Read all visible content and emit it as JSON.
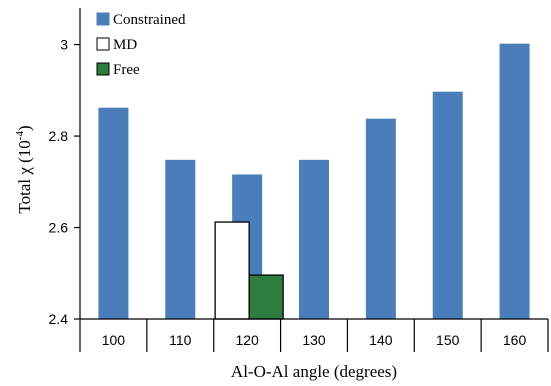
{
  "chart_data": {
    "type": "bar",
    "xlabel": "Al-O-Al angle (degrees)",
    "ylabel": "Total χ (10",
    "ylabel_exp": "-4",
    "ylabel_close": ")",
    "ylim": [
      2.4,
      3.08
    ],
    "yticks": [
      2.4,
      2.6,
      2.8,
      3.0
    ],
    "ytick_labels": [
      "2.4",
      "2.6",
      "2.8",
      "3"
    ],
    "categories": [
      "100",
      "110",
      "120",
      "130",
      "140",
      "150",
      "160"
    ],
    "grid": false,
    "legend_position": "top-left",
    "series": [
      {
        "name": "Constrained",
        "color": "#4a7ebb",
        "border": "#4a7ebb",
        "values": [
          2.862,
          2.748,
          2.716,
          2.748,
          2.838,
          2.897,
          3.002
        ]
      },
      {
        "name": "MD",
        "color": "#ffffff",
        "border": "#000000",
        "values": [
          null,
          null,
          2.612,
          null,
          null,
          null,
          null
        ]
      },
      {
        "name": "Free",
        "color": "#2d7d3f",
        "border": "#000000",
        "values": [
          null,
          null,
          2.496,
          null,
          null,
          null,
          null
        ]
      }
    ]
  }
}
